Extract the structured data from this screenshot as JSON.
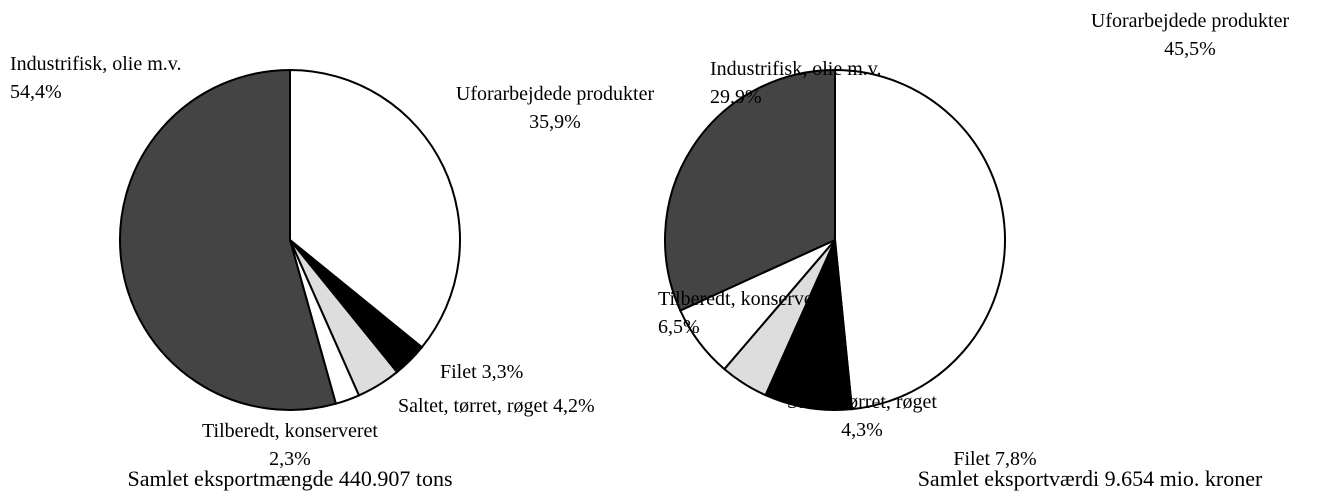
{
  "chart_data": [
    {
      "type": "pie",
      "title": "Samlet eksportmængde 440.907 tons",
      "categories": [
        "Uforarbejdede produkter",
        "Filet",
        "Saltet, tørret, røget",
        "Tilberedt, konserveret",
        "Industrifisk, olie m.v."
      ],
      "values": [
        35.9,
        3.3,
        4.2,
        2.3,
        54.4
      ],
      "value_labels": [
        "35,9%",
        "3,3%",
        "4,2%",
        "2,3%",
        "54,4%"
      ],
      "colors": [
        "#ffffff",
        "#000000",
        "#dddddd",
        "#ffffff",
        "#444444"
      ]
    },
    {
      "type": "pie",
      "title": "Samlet eksportværdi 9.654 mio. kroner",
      "categories": [
        "Uforarbejdede produkter",
        "Filet",
        "Saltet, tørret, røget",
        "Tilberedt, konserveret",
        "Industrifisk, olie m.v."
      ],
      "values": [
        45.5,
        7.8,
        4.3,
        6.5,
        29.9
      ],
      "value_labels": [
        "45,5%",
        "7,8%",
        "4,3%",
        "6,5%",
        "29,9%"
      ],
      "colors": [
        "#ffffff",
        "#000000",
        "#dddddd",
        "#ffffff",
        "#444444"
      ]
    }
  ]
}
